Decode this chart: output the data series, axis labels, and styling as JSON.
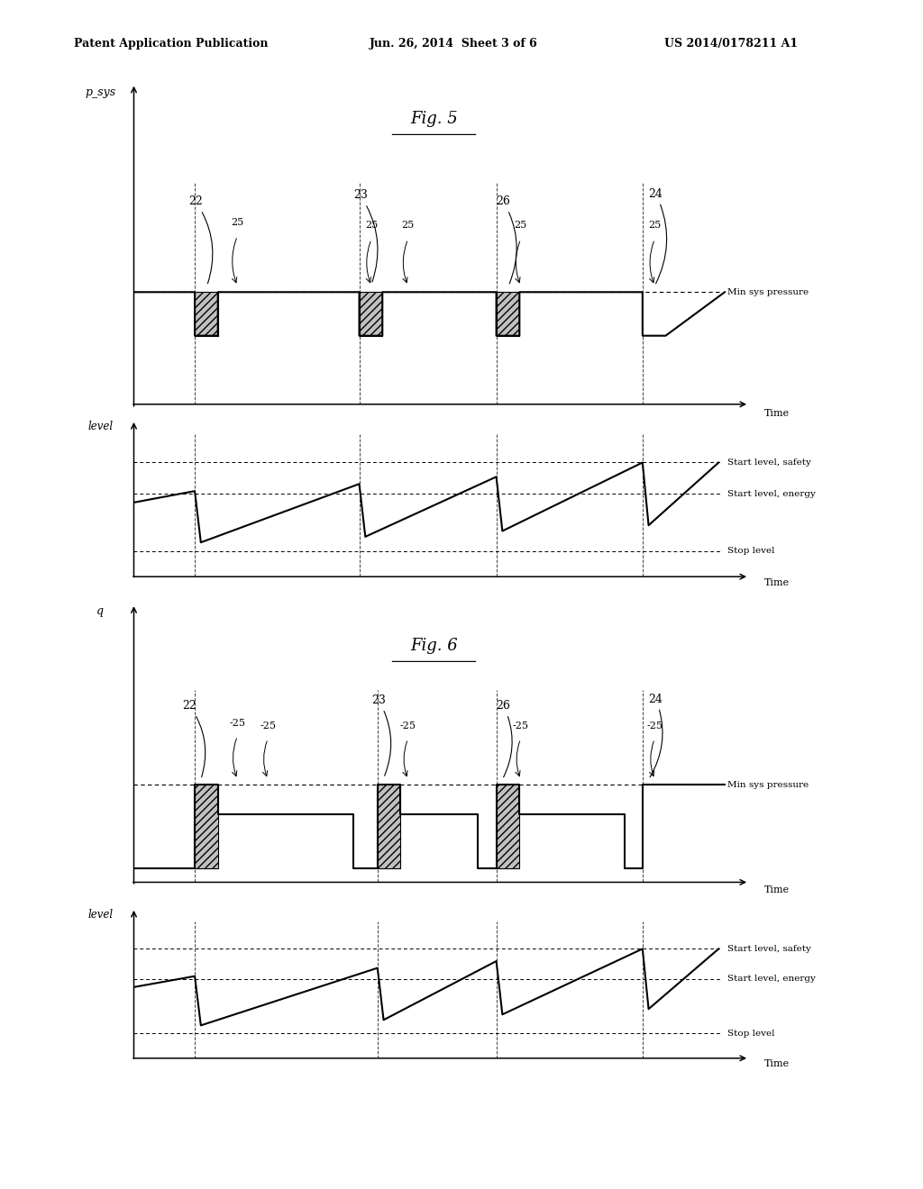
{
  "bg_color": "#ffffff",
  "header_left": "Patent Application Publication",
  "header_center": "Jun. 26, 2014  Sheet 3 of 6",
  "header_right": "US 2014/0178211 A1",
  "fig5_title": "Fig. 5",
  "fig6_title": "Fig. 6",
  "label_psys": "p_sys",
  "label_q": "q",
  "label_level": "level",
  "label_min_sys": "Min sys pressure",
  "label_start_safety": "Start level, safety",
  "label_start_energy": "Start level, energy",
  "label_stop": "Stop level",
  "label_time": "Time"
}
